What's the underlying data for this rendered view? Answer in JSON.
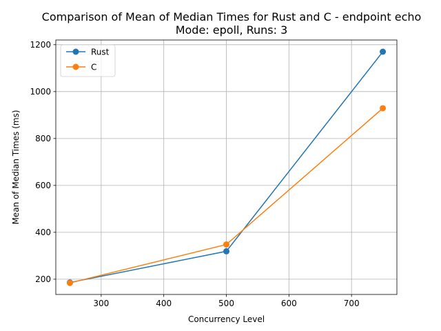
{
  "chart_data": {
    "type": "line",
    "title": "Comparison of Mean of Median Times for Rust and C - endpoint echo",
    "subtitle": "Mode: epoll, Runs: 3",
    "xlabel": "Concurrency Level",
    "ylabel": "Mean of Median Times (ms)",
    "xlim": [
      227.5,
      772.5
    ],
    "ylim": [
      135,
      1220
    ],
    "xticks": [
      300,
      400,
      500,
      600,
      700
    ],
    "yticks": [
      200,
      400,
      600,
      800,
      1000,
      1200
    ],
    "grid": true,
    "legend_position": "top-left",
    "x": [
      250,
      500,
      750
    ],
    "series": [
      {
        "name": "Rust",
        "color": "#1f77b4",
        "values": [
          186,
          319,
          1170
        ]
      },
      {
        "name": "C",
        "color": "#ff7f0e",
        "values": [
          184,
          348,
          929
        ]
      }
    ]
  }
}
